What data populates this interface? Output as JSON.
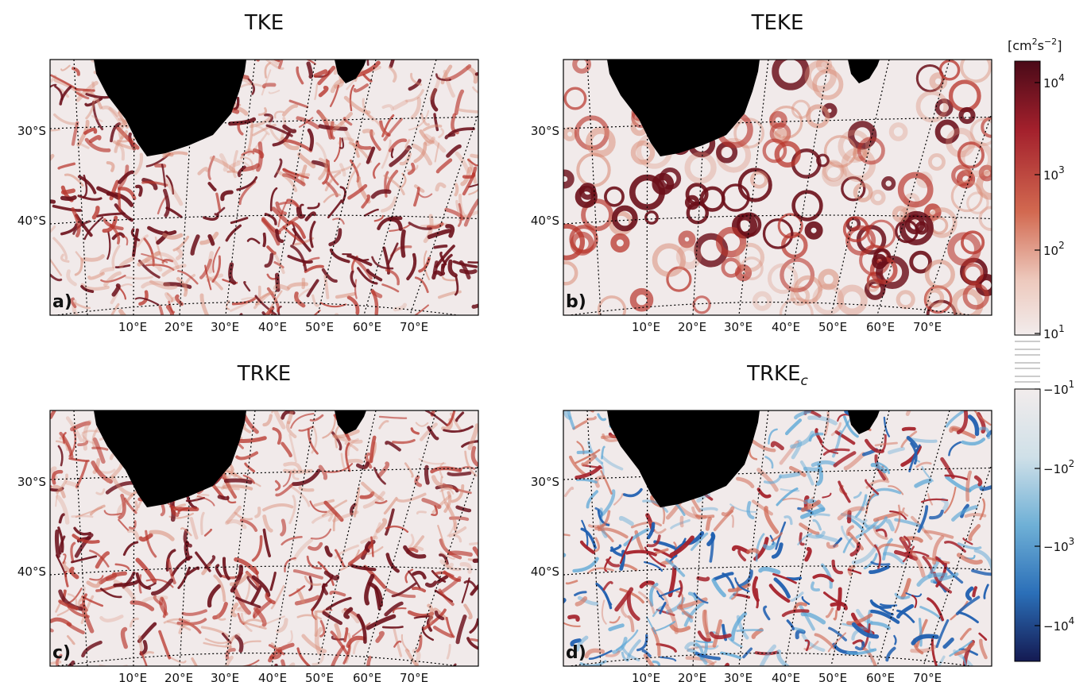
{
  "chart_data": [
    {
      "type": "heatmap",
      "panel_label": "a)",
      "title": "TKE",
      "title_subscript": "",
      "colormap": "reds",
      "xlabels": [
        "10°E",
        "20°E",
        "30°E",
        "40°E",
        "50°E",
        "60°E",
        "70°E"
      ],
      "ylabels": [
        "30°S",
        "40°S"
      ]
    },
    {
      "type": "heatmap",
      "panel_label": "b)",
      "title": "TEKE",
      "title_subscript": "",
      "colormap": "reds",
      "xlabels": [
        "10°E",
        "20°E",
        "30°E",
        "40°E",
        "50°E",
        "60°E",
        "70°E"
      ],
      "ylabels": [
        "30°S",
        "40°S"
      ]
    },
    {
      "type": "heatmap",
      "panel_label": "c)",
      "title": "TRKE",
      "title_subscript": "",
      "colormap": "reds",
      "xlabels": [
        "10°E",
        "20°E",
        "30°E",
        "40°E",
        "50°E",
        "60°E",
        "70°E"
      ],
      "ylabels": [
        "30°S",
        "40°S"
      ]
    },
    {
      "type": "heatmap",
      "panel_label": "d)",
      "title": "TRKE",
      "title_subscript": "c",
      "colormap": "diverging",
      "xlabels": [
        "10°E",
        "20°E",
        "30°E",
        "40°E",
        "50°E",
        "60°E",
        "70°E"
      ],
      "ylabels": [
        "30°S",
        "40°S"
      ]
    }
  ],
  "colorbar": {
    "unit_label": "[cm²s⁻²]",
    "unit_base": "[cm",
    "unit_sup1": "2",
    "unit_mid": "s",
    "unit_sup2": "−2",
    "unit_end": "]",
    "positive_ticks": [
      {
        "base": "10",
        "exp": "4",
        "value": 10000
      },
      {
        "base": "10",
        "exp": "3",
        "value": 1000
      },
      {
        "base": "10",
        "exp": "2",
        "value": 100
      },
      {
        "base": "10",
        "exp": "1",
        "value": 10
      }
    ],
    "negative_ticks": [
      {
        "base": "−10",
        "exp": "1",
        "value": -10
      },
      {
        "base": "−10",
        "exp": "2",
        "value": -100
      },
      {
        "base": "−10",
        "exp": "3",
        "value": -1000
      },
      {
        "base": "−10",
        "exp": "4",
        "value": -10000
      }
    ],
    "colors": {
      "max_positive": "#5a0f1e",
      "positive_mid": "#c0392b",
      "near_zero": "#f2ecec",
      "negative_mid": "#3d8fc9",
      "max_negative": "#141a52"
    }
  },
  "colors": {
    "land": "#000000",
    "ocean_low": "#f1eaea",
    "eddy_red": "#c4402f",
    "eddy_dark": "#6b0f1a",
    "eddy_blue": "#2f7cc4",
    "grid": "#000000"
  }
}
